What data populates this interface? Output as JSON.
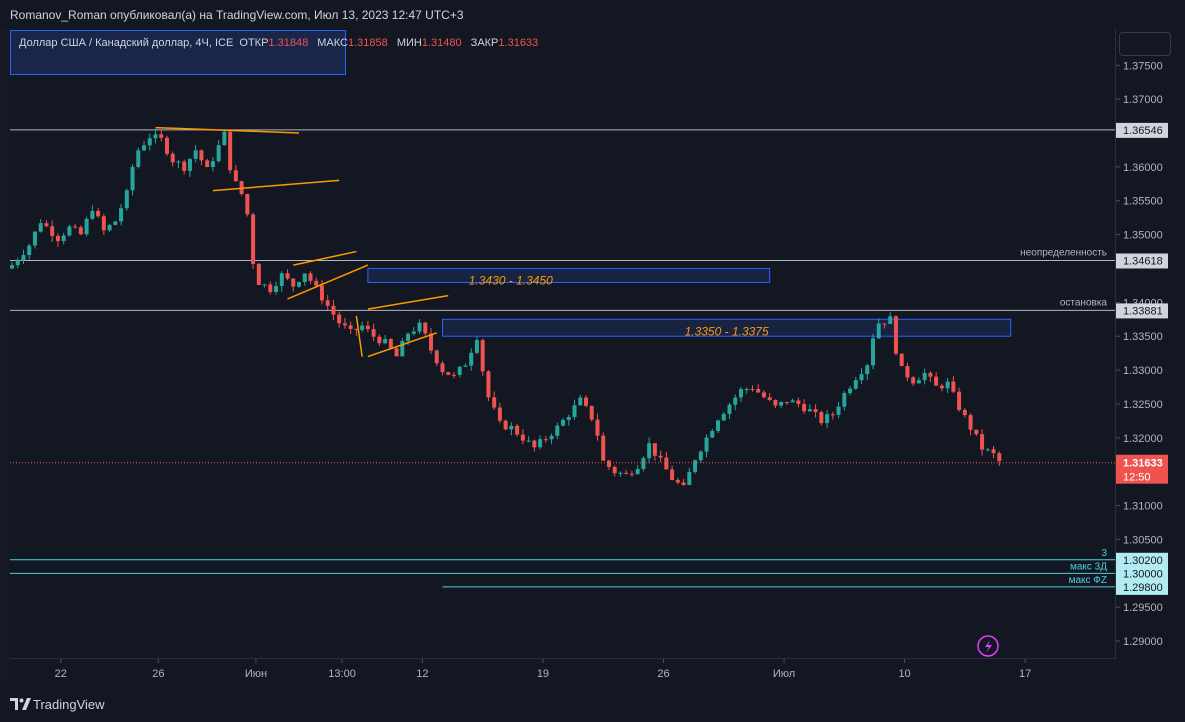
{
  "header": {
    "publisher_line": "Romanov_Roman опубликовал(а) на TradingView.com, Июл 13, 2023 12:47 UTC+3"
  },
  "legend": {
    "symbol": "Доллар США / Канадский доллар, 4Ч, ICE",
    "open_label": "ОТКР",
    "open_value": "1.31848",
    "high_label": "МАКС",
    "high_value": "1.31858",
    "low_label": "МИН",
    "low_value": "1.31480",
    "close_label": "ЗАКР",
    "close_value": "1.31633"
  },
  "footer": {
    "brand": "TradingView"
  },
  "chart_data": {
    "type": "candlestick",
    "timeframe": "4Ч",
    "ylim": [
      1.2875,
      1.3805
    ],
    "y_ticks": [
      "1.37500",
      "1.37000",
      "1.36000",
      "1.35500",
      "1.35000",
      "1.34000",
      "1.33500",
      "1.33000",
      "1.32500",
      "1.32000",
      "1.31000",
      "1.30500",
      "1.29500",
      "1.29000"
    ],
    "x_ticks": [
      "22",
      "26",
      "Июн",
      "13:00",
      "12",
      "19",
      "26",
      "Июл",
      "10",
      "17"
    ],
    "price_path": [
      [
        0,
        1.3455
      ],
      [
        3,
        1.3485
      ],
      [
        5,
        1.352
      ],
      [
        8,
        1.3495
      ],
      [
        10,
        1.351
      ],
      [
        12,
        1.35
      ],
      [
        14,
        1.354
      ],
      [
        16,
        1.3505
      ],
      [
        18,
        1.352
      ],
      [
        20,
        1.356
      ],
      [
        21,
        1.36
      ],
      [
        22,
        1.3625
      ],
      [
        24,
        1.3645
      ],
      [
        26,
        1.364
      ],
      [
        28,
        1.361
      ],
      [
        30,
        1.36
      ],
      [
        32,
        1.3625
      ],
      [
        34,
        1.3595
      ],
      [
        36,
        1.363
      ],
      [
        37,
        1.3648
      ],
      [
        38,
        1.36
      ],
      [
        39,
        1.3575
      ],
      [
        40,
        1.356
      ],
      [
        41,
        1.353
      ],
      [
        42,
        1.346
      ],
      [
        43,
        1.343
      ],
      [
        45,
        1.342
      ],
      [
        47,
        1.344
      ],
      [
        49,
        1.3425
      ],
      [
        51,
        1.3445
      ],
      [
        53,
        1.342
      ],
      [
        55,
        1.3395
      ],
      [
        57,
        1.337
      ],
      [
        59,
        1.3355
      ],
      [
        61,
        1.3365
      ],
      [
        63,
        1.335
      ],
      [
        65,
        1.334
      ],
      [
        67,
        1.332
      ],
      [
        69,
        1.3355
      ],
      [
        71,
        1.3365
      ],
      [
        72,
        1.335
      ],
      [
        73,
        1.333
      ],
      [
        75,
        1.33
      ],
      [
        77,
        1.329
      ],
      [
        79,
        1.331
      ],
      [
        81,
        1.335
      ],
      [
        82,
        1.33
      ],
      [
        83,
        1.326
      ],
      [
        85,
        1.322
      ],
      [
        87,
        1.3215
      ],
      [
        89,
        1.32
      ],
      [
        91,
        1.3185
      ],
      [
        93,
        1.32
      ],
      [
        95,
        1.3215
      ],
      [
        97,
        1.3235
      ],
      [
        99,
        1.3255
      ],
      [
        101,
        1.323
      ],
      [
        102,
        1.3205
      ],
      [
        103,
        1.3165
      ],
      [
        105,
        1.315
      ],
      [
        107,
        1.3145
      ],
      [
        109,
        1.316
      ],
      [
        111,
        1.319
      ],
      [
        113,
        1.3165
      ],
      [
        115,
        1.314
      ],
      [
        117,
        1.3125
      ],
      [
        119,
        1.317
      ],
      [
        121,
        1.32
      ],
      [
        123,
        1.323
      ],
      [
        125,
        1.325
      ],
      [
        127,
        1.327
      ],
      [
        129,
        1.3275
      ],
      [
        131,
        1.326
      ],
      [
        133,
        1.3245
      ],
      [
        135,
        1.3255
      ],
      [
        137,
        1.325
      ],
      [
        139,
        1.324
      ],
      [
        141,
        1.3225
      ],
      [
        143,
        1.3235
      ],
      [
        145,
        1.3265
      ],
      [
        147,
        1.329
      ],
      [
        149,
        1.331
      ],
      [
        150,
        1.335
      ],
      [
        151,
        1.337
      ],
      [
        153,
        1.3375
      ],
      [
        154,
        1.333
      ],
      [
        155,
        1.33
      ],
      [
        157,
        1.3285
      ],
      [
        159,
        1.3295
      ],
      [
        161,
        1.3275
      ],
      [
        163,
        1.328
      ],
      [
        165,
        1.3245
      ],
      [
        167,
        1.3215
      ],
      [
        169,
        1.3185
      ],
      [
        171,
        1.3175
      ],
      [
        172,
        1.3165
      ]
    ],
    "horizontal_levels": [
      {
        "price": 1.36546,
        "label": "1.36546",
        "note": ""
      },
      {
        "price": 1.34618,
        "label": "1.34618",
        "note": "неопределенность"
      },
      {
        "price": 1.33881,
        "label": "1.33881",
        "note": "остановка"
      },
      {
        "price": 1.302,
        "label": "1.30200",
        "note": "3"
      },
      {
        "price": 1.3,
        "label": "1.30000",
        "note": "макс 3Д"
      },
      {
        "price": 1.298,
        "label": "1.29800",
        "note": "макс ФZ"
      }
    ],
    "zones": [
      {
        "label": "1.3430 - 1.3450",
        "low": 1.343,
        "high": 1.345
      },
      {
        "label": "1.3350 - 1.3375",
        "low": 1.335,
        "high": 1.3375
      }
    ],
    "current_price": {
      "value": "1.31633",
      "countdown": "12:50"
    },
    "colors": {
      "up": "#26a69a",
      "down": "#ef5350",
      "level": "#b2b5be",
      "cyan_level": "#4dd0e1",
      "trend": "#ff9800",
      "zone": "#2962ff",
      "zone_text": "#ff9800"
    }
  }
}
